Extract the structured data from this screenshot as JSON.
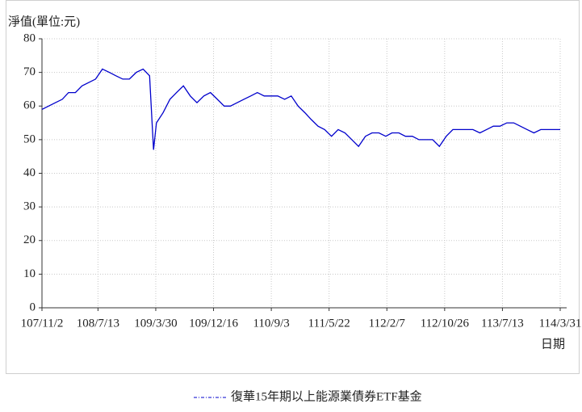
{
  "chart_data": {
    "type": "line",
    "y_label": "淨值(單位:元)",
    "x_label": "日期",
    "x": [
      "107/11/2",
      "107/12/2",
      "108/1/2",
      "108/2/2",
      "108/3/2",
      "108/4/2",
      "108/5/2",
      "108/6/2",
      "108/7/2",
      "108/8/2",
      "108/9/2",
      "108/10/2",
      "108/11/2",
      "108/12/2",
      "109/1/2",
      "109/2/2",
      "109/3/2",
      "109/3/20",
      "109/4/2",
      "109/5/2",
      "109/6/2",
      "109/7/2",
      "109/8/2",
      "109/9/2",
      "109/10/2",
      "109/11/2",
      "109/12/2",
      "110/1/2",
      "110/2/2",
      "110/3/2",
      "110/4/2",
      "110/5/2",
      "110/6/2",
      "110/7/2",
      "110/8/2",
      "110/9/2",
      "110/10/2",
      "110/11/2",
      "110/12/2",
      "111/1/2",
      "111/2/2",
      "111/3/2",
      "111/4/2",
      "111/5/2",
      "111/6/2",
      "111/7/2",
      "111/8/2",
      "111/9/2",
      "111/10/2",
      "111/11/2",
      "111/12/2",
      "112/1/2",
      "112/2/2",
      "112/3/2",
      "112/4/2",
      "112/5/2",
      "112/6/2",
      "112/7/2",
      "112/8/2",
      "112/9/2",
      "112/10/2",
      "112/11/2",
      "112/12/2",
      "113/1/2",
      "113/2/2",
      "113/3/2",
      "113/4/2",
      "113/5/2",
      "113/6/2",
      "113/7/2",
      "113/8/2",
      "113/9/2",
      "113/10/2",
      "113/11/2",
      "113/12/2",
      "114/1/2",
      "114/2/2",
      "114/3/2",
      "114/3/31"
    ],
    "series": [
      {
        "name": "復華15年期以上能源業債券ETF基金",
        "color": "#0000cc",
        "values": [
          59,
          60,
          61,
          62,
          64,
          64,
          66,
          67,
          68,
          71,
          70,
          69,
          68,
          68,
          70,
          71,
          69,
          47,
          55,
          58,
          62,
          64,
          66,
          63,
          61,
          63,
          64,
          62,
          60,
          60,
          61,
          62,
          63,
          64,
          63,
          63,
          63,
          62,
          63,
          60,
          58,
          56,
          54,
          53,
          51,
          53,
          52,
          50,
          48,
          51,
          52,
          52,
          51,
          52,
          52,
          51,
          51,
          50,
          50,
          50,
          48,
          51,
          53,
          53,
          53,
          53,
          52,
          53,
          54,
          54,
          55,
          55,
          54,
          53,
          52,
          53,
          53,
          53,
          53
        ]
      }
    ],
    "xlim": [
      "107/11/2",
      "114/3/31"
    ],
    "xticks": [
      "107/11/2",
      "108/7/13",
      "109/3/30",
      "109/12/16",
      "110/9/3",
      "111/5/22",
      "112/2/7",
      "112/10/26",
      "113/7/13",
      "114/3/31"
    ],
    "ylim": [
      0,
      80
    ],
    "yticks": [
      0,
      10,
      20,
      30,
      40,
      50,
      60,
      70,
      80
    ],
    "grid": true
  }
}
